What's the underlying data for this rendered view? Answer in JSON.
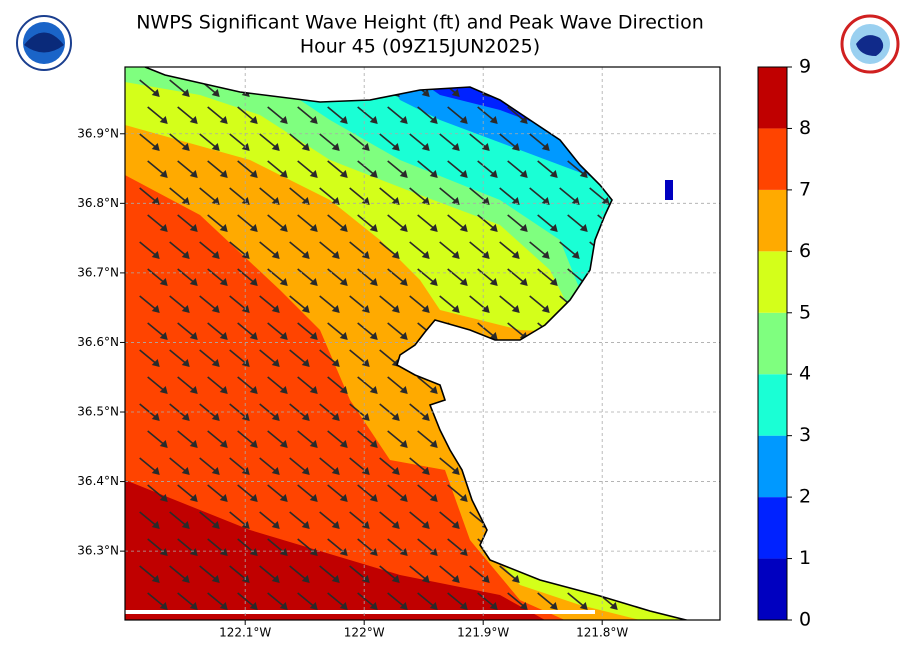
{
  "chart_data": {
    "type": "contour-map",
    "title": "NWPS Significant Wave Height (ft) and Peak Wave Direction",
    "subtitle": "Hour 45 (09Z15JUN2025)",
    "xlim": [
      -122.201,
      -121.701
    ],
    "ylim": [
      36.201,
      36.996
    ],
    "xticks": [
      {
        "value": -122.1,
        "label": "122.1°W"
      },
      {
        "value": -122.0,
        "label": "122°W"
      },
      {
        "value": -121.9,
        "label": "121.9°W"
      },
      {
        "value": -121.8,
        "label": "121.8°W"
      }
    ],
    "yticks": [
      {
        "value": 36.3,
        "label": "36.3°N"
      },
      {
        "value": 36.4,
        "label": "36.4°N"
      },
      {
        "value": 36.5,
        "label": "36.5°N"
      },
      {
        "value": 36.6,
        "label": "36.6°N"
      },
      {
        "value": 36.7,
        "label": "36.7°N"
      },
      {
        "value": 36.8,
        "label": "36.8°N"
      },
      {
        "value": 36.9,
        "label": "36.9°N"
      }
    ],
    "grid": true,
    "colorbar": {
      "levels": [
        0,
        1,
        2,
        3,
        4,
        5,
        6,
        7,
        8,
        9
      ],
      "colors": [
        "#0000c0",
        "#0022ff",
        "#0099ff",
        "#1affd5",
        "#7fff7f",
        "#d4ff1a",
        "#ffaa00",
        "#ff4400",
        "#c00000"
      ]
    }
  }
}
